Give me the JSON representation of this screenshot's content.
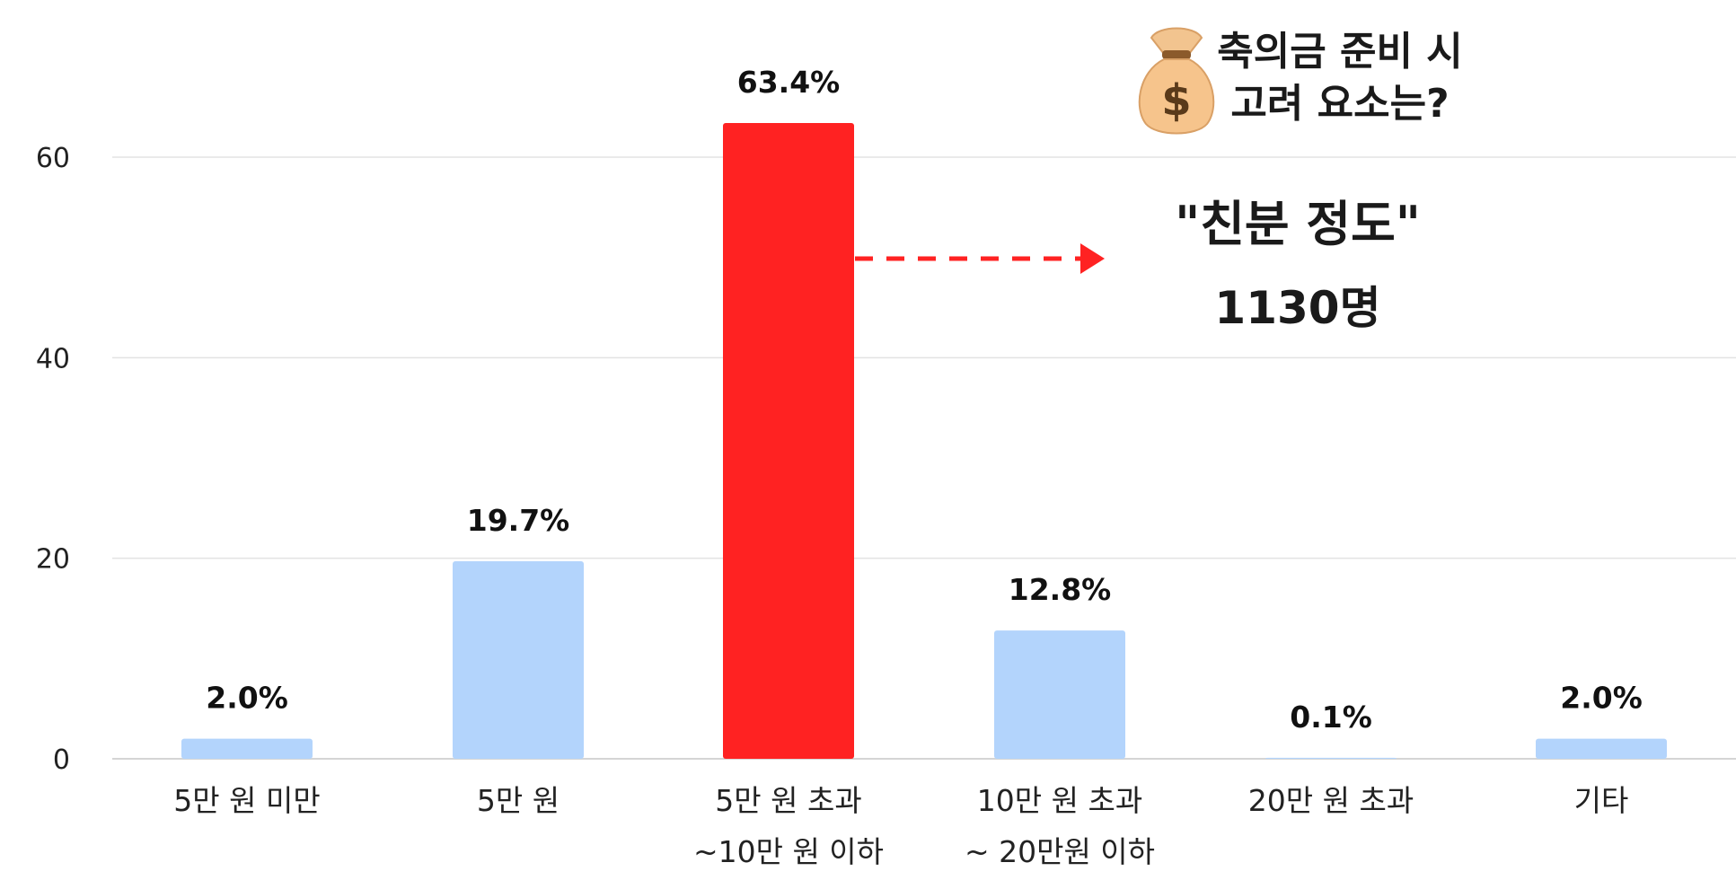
{
  "chart_data": {
    "type": "bar",
    "title": [
      "축의금 준비 시",
      "고려 요소는?"
    ],
    "categories": [
      [
        "5만 원 미만"
      ],
      [
        "5만 원"
      ],
      [
        "5만 원 초과",
        "~10만 원 이하"
      ],
      [
        "10만 원 초과",
        "~ 20만원 이하"
      ],
      [
        "20만 원 초과"
      ],
      [
        "기타"
      ]
    ],
    "values": [
      2.0,
      19.7,
      63.4,
      12.8,
      0.1,
      2.0
    ],
    "data_labels": [
      "2.0%",
      "19.7%",
      "63.4%",
      "12.8%",
      "0.1%",
      "2.0%"
    ],
    "highlight_index": 2,
    "yticks": [
      "0",
      "20",
      "40",
      "60"
    ],
    "ylim": [
      0,
      60
    ],
    "grid": true,
    "legend": "none",
    "colors": {
      "bar": "#b3d4fc",
      "highlight_bar": "#ff2222",
      "arrow": "#ff2222",
      "gridline": "#e3e3e3"
    },
    "annotation": {
      "icon": "money-bag-icon",
      "headline": "\"친분 정도\"",
      "count": "1130명"
    }
  }
}
